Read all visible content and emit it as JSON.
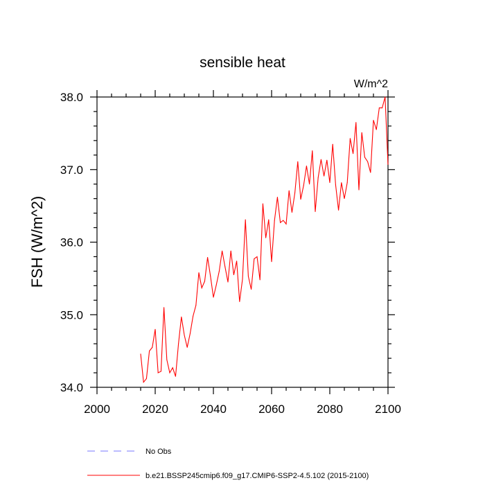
{
  "chart_data": {
    "type": "line",
    "title": "sensible heat",
    "units": "W/m^2",
    "xlabel": "",
    "ylabel": "FSH  (W/m^2)",
    "xlim": [
      2000,
      2100
    ],
    "ylim": [
      34.0,
      38.0
    ],
    "x_ticks": [
      2000,
      2020,
      2040,
      2060,
      2080,
      2100
    ],
    "x_tick_labels": [
      "2000",
      "2020",
      "2040",
      "2060",
      "2080",
      "2100"
    ],
    "y_ticks": [
      34.0,
      35.0,
      36.0,
      37.0,
      38.0
    ],
    "y_tick_labels": [
      "34.0",
      "35.0",
      "36.0",
      "37.0",
      "38.0"
    ],
    "grid": false,
    "legend": [
      {
        "label": "No Obs",
        "color": "#7777ff",
        "style": "dashed"
      },
      {
        "label": "b.e21.BSSP245cmip6.f09_g17.CMIP6-SSP2-4.5.102 (2015-2100)",
        "color": "#ff0000",
        "style": "solid"
      }
    ],
    "series": [
      {
        "name": "b.e21.BSSP245cmip6.f09_g17.CMIP6-SSP2-4.5.102 (2015-2100)",
        "color": "#ff0000",
        "x": [
          2015,
          2016,
          2017,
          2018,
          2019,
          2020,
          2021,
          2022,
          2023,
          2024,
          2025,
          2026,
          2027,
          2028,
          2029,
          2030,
          2031,
          2032,
          2033,
          2034,
          2035,
          2036,
          2037,
          2038,
          2039,
          2040,
          2041,
          2042,
          2043,
          2044,
          2045,
          2046,
          2047,
          2048,
          2049,
          2050,
          2051,
          2052,
          2053,
          2054,
          2055,
          2056,
          2057,
          2058,
          2059,
          2060,
          2061,
          2062,
          2063,
          2064,
          2065,
          2066,
          2067,
          2068,
          2069,
          2070,
          2071,
          2072,
          2073,
          2074,
          2075,
          2076,
          2077,
          2078,
          2079,
          2080,
          2081,
          2082,
          2083,
          2084,
          2085,
          2086,
          2087,
          2088,
          2089,
          2090,
          2091,
          2092,
          2093,
          2094,
          2095,
          2096,
          2097,
          2098,
          2099,
          2100
        ],
        "values": [
          34.46,
          34.07,
          34.12,
          34.5,
          34.55,
          34.8,
          34.2,
          34.22,
          35.1,
          34.38,
          34.2,
          34.27,
          34.15,
          34.6,
          34.97,
          34.72,
          34.55,
          34.74,
          34.98,
          35.13,
          35.58,
          35.37,
          35.46,
          35.79,
          35.53,
          35.24,
          35.41,
          35.6,
          35.88,
          35.66,
          35.45,
          35.88,
          35.55,
          35.74,
          35.18,
          35.49,
          36.31,
          35.53,
          35.35,
          35.77,
          35.8,
          35.48,
          36.53,
          36.06,
          36.31,
          35.73,
          36.3,
          36.62,
          36.27,
          36.3,
          36.25,
          36.71,
          36.41,
          36.68,
          37.11,
          36.59,
          36.78,
          37.05,
          36.8,
          37.26,
          36.42,
          36.89,
          37.14,
          36.91,
          37.13,
          36.82,
          37.35,
          36.79,
          36.44,
          36.82,
          36.6,
          36.82,
          37.43,
          37.22,
          37.65,
          36.72,
          37.51,
          37.17,
          37.11,
          36.96,
          37.68,
          37.55,
          37.85,
          37.85,
          38.0,
          37.07
        ]
      }
    ]
  }
}
